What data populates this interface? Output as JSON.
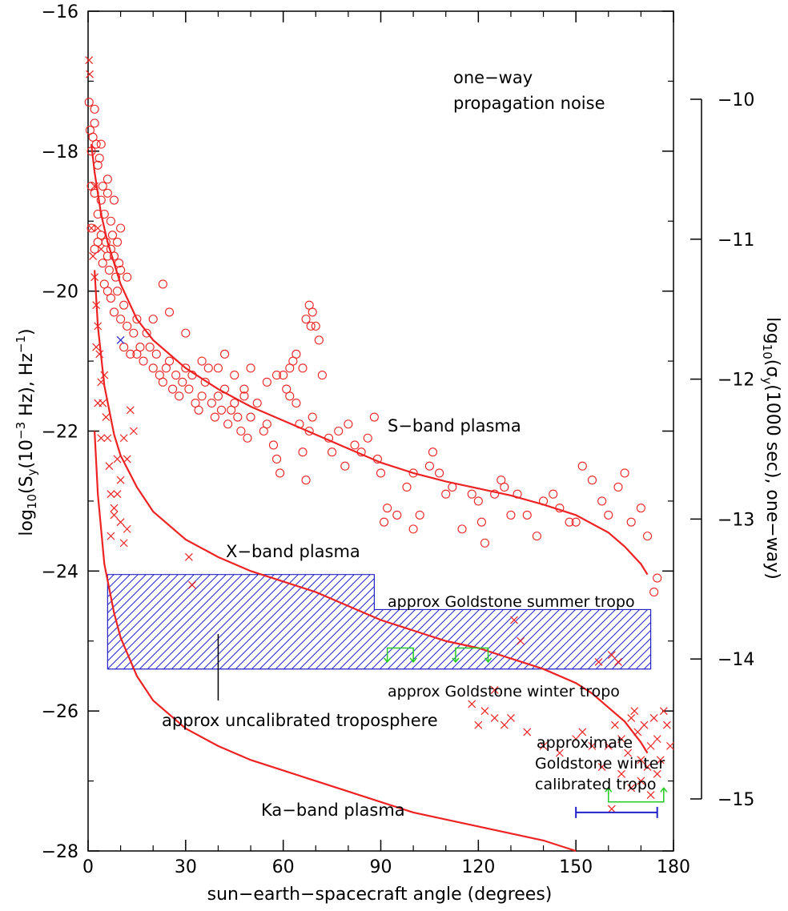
{
  "chart_data": {
    "type": "scatter",
    "title": "",
    "xlabel": "sun−earth−spacecraft angle (degrees)",
    "ylabel_parts": {
      "a": "log",
      "a_sub": "10",
      "b": "(S",
      "b_sub": "y",
      "c": "(10",
      "c_sup": "−3",
      "d": " Hz), Hz",
      "d_sup": "−1",
      "e": ")"
    },
    "y2label_parts": {
      "a": "log",
      "a_sub": "10",
      "b": "(σ",
      "b_sub": "y",
      "c": "(1000 sec), one−way)"
    },
    "xlim": [
      0,
      180
    ],
    "ylim": [
      -28,
      -16
    ],
    "y2lim": [
      -15,
      -10
    ],
    "x_ticks": [
      "0",
      "30",
      "60",
      "90",
      "120",
      "150",
      "180"
    ],
    "y_ticks": [
      "−16",
      "−18",
      "−20",
      "−22",
      "−24",
      "−26",
      "−28"
    ],
    "y2_ticks": [
      "−10",
      "−11",
      "−12",
      "−13",
      "−14",
      "−15"
    ],
    "annotations": {
      "title_line1": "one−way",
      "title_line2": "propagation noise",
      "s_band": "S−band plasma",
      "x_band": "X−band plasma",
      "ka_band": "Ka−band plasma",
      "summer": "approx Goldstone summer tropo",
      "winter": "approx Goldstone winter tropo",
      "uncal": "approx uncalibrated troposphere",
      "calib1": "approximate",
      "calib2": "Goldstone winter",
      "calib3": "calibrated tropo"
    },
    "curves": [
      {
        "label": "S−band plasma",
        "x": [
          1,
          2,
          4,
          6,
          8,
          10,
          15,
          20,
          30,
          40,
          50,
          60,
          70,
          80,
          90,
          100,
          110,
          120,
          130,
          140,
          150,
          160,
          165,
          170,
          172
        ],
        "y": [
          -17.9,
          -18.3,
          -18.9,
          -19.3,
          -19.6,
          -19.9,
          -20.4,
          -20.7,
          -21.1,
          -21.4,
          -21.65,
          -21.85,
          -22.05,
          -22.25,
          -22.45,
          -22.6,
          -22.72,
          -22.82,
          -22.92,
          -23.05,
          -23.2,
          -23.45,
          -23.65,
          -23.9,
          -24.05
        ]
      },
      {
        "label": "X−band plasma",
        "x": [
          2,
          3,
          5,
          8,
          10,
          15,
          20,
          30,
          40,
          50,
          60,
          70,
          80,
          90,
          100,
          110,
          120,
          130,
          140,
          150,
          155,
          160,
          165,
          170,
          172
        ],
        "y": [
          -19.7,
          -20.5,
          -21.35,
          -22.05,
          -22.35,
          -22.8,
          -23.15,
          -23.55,
          -23.8,
          -24.0,
          -24.15,
          -24.3,
          -24.5,
          -24.7,
          -24.85,
          -25.0,
          -25.1,
          -25.25,
          -25.4,
          -25.6,
          -25.75,
          -25.95,
          -26.15,
          -26.45,
          -26.6
        ]
      },
      {
        "label": "Ka−band plasma",
        "x": [
          2,
          3,
          5,
          8,
          10,
          15,
          20,
          30,
          40,
          50,
          60,
          70,
          80,
          90,
          100,
          110,
          120,
          130,
          140,
          150
        ],
        "y": [
          -22.0,
          -22.9,
          -23.9,
          -24.6,
          -24.95,
          -25.5,
          -25.85,
          -26.25,
          -26.5,
          -26.7,
          -26.85,
          -27.0,
          -27.15,
          -27.3,
          -27.45,
          -27.55,
          -27.65,
          -27.75,
          -27.85,
          -28.0
        ]
      }
    ],
    "tropo_region": {
      "x": [
        6,
        88,
        88,
        173,
        173,
        6
      ],
      "y": [
        -24.05,
        -24.05,
        -24.55,
        -24.55,
        -25.4,
        -25.4
      ]
    },
    "s_band_circles": [
      [
        0.3,
        -17.3
      ],
      [
        0.6,
        -17.7
      ],
      [
        1,
        -18
      ],
      [
        1.5,
        -17.8
      ],
      [
        2,
        -17.4
      ],
      [
        2.5,
        -17.9
      ],
      [
        1,
        -18.5
      ],
      [
        2,
        -18.6
      ],
      [
        3,
        -18.2
      ],
      [
        4,
        -18.7
      ],
      [
        4.5,
        -18.5
      ],
      [
        5,
        -18.9
      ],
      [
        6,
        -18.6
      ],
      [
        7,
        -19
      ],
      [
        1,
        -19.1
      ],
      [
        2,
        -19.4
      ],
      [
        3,
        -19.3
      ],
      [
        4,
        -19.2
      ],
      [
        4.5,
        -19.6
      ],
      [
        5.5,
        -19.3
      ],
      [
        6,
        -19.5
      ],
      [
        6.5,
        -19.7
      ],
      [
        7,
        -19.4
      ],
      [
        7.5,
        -19.2
      ],
      [
        8,
        -19.5
      ],
      [
        8.5,
        -19.8
      ],
      [
        9,
        -19.3
      ],
      [
        9.5,
        -19.6
      ],
      [
        10,
        -19.7
      ],
      [
        5,
        -19.9
      ],
      [
        6,
        -20
      ],
      [
        7,
        -20.1
      ],
      [
        8,
        -20.3
      ],
      [
        9,
        -20
      ],
      [
        10,
        -20.4
      ],
      [
        11,
        -20.2
      ],
      [
        12,
        -20.5
      ],
      [
        11,
        -20.8
      ],
      [
        13,
        -20.9
      ],
      [
        14,
        -20.6
      ],
      [
        15,
        -20.9
      ],
      [
        16,
        -20.8
      ],
      [
        17,
        -21
      ],
      [
        18,
        -20.6
      ],
      [
        19,
        -20.8
      ],
      [
        20,
        -21.1
      ],
      [
        21,
        -20.9
      ],
      [
        22,
        -21.2
      ],
      [
        23,
        -21.3
      ],
      [
        24,
        -21.1
      ],
      [
        25,
        -21
      ],
      [
        26,
        -21.4
      ],
      [
        27,
        -21.2
      ],
      [
        28,
        -21.5
      ],
      [
        29,
        -21.3
      ],
      [
        30,
        -21.1
      ],
      [
        31,
        -21.4
      ],
      [
        32,
        -21.2
      ],
      [
        33,
        -21.6
      ],
      [
        34,
        -21.7
      ],
      [
        35,
        -21.5
      ],
      [
        36,
        -21.3
      ],
      [
        37,
        -21.1
      ],
      [
        38,
        -21.6
      ],
      [
        39,
        -21.8
      ],
      [
        40,
        -21.5
      ],
      [
        41,
        -21.7
      ],
      [
        42,
        -21.4
      ],
      [
        43,
        -21.9
      ],
      [
        44,
        -21.7
      ],
      [
        45,
        -21.6
      ],
      [
        46,
        -21.8
      ],
      [
        47,
        -22
      ],
      [
        48,
        -21.5
      ],
      [
        49,
        -22.1
      ],
      [
        50,
        -21.8
      ],
      [
        52,
        -21.6
      ],
      [
        54,
        -22
      ],
      [
        55,
        -21.9
      ],
      [
        57,
        -22.2
      ],
      [
        58,
        -22.4
      ],
      [
        59,
        -22.6
      ],
      [
        60,
        -21.2
      ],
      [
        61,
        -21.4
      ],
      [
        62,
        -21.1
      ],
      [
        63,
        -21
      ],
      [
        64,
        -21.6
      ],
      [
        65,
        -21.9
      ],
      [
        66,
        -22.3
      ],
      [
        67,
        -22.7
      ],
      [
        68,
        -22
      ],
      [
        69,
        -21.8
      ],
      [
        70,
        -20.5
      ],
      [
        71,
        -20.7
      ],
      [
        72,
        -21.2
      ],
      [
        74,
        -22.1
      ],
      [
        75,
        -22.3
      ],
      [
        77,
        -22
      ],
      [
        79,
        -22.5
      ],
      [
        80,
        -21.9
      ],
      [
        82,
        -22.2
      ],
      [
        84,
        -22.3
      ],
      [
        86,
        -22.1
      ],
      [
        88,
        -21.8
      ],
      [
        89,
        -22.4
      ],
      [
        90,
        -22.6
      ],
      [
        91,
        -23.3
      ],
      [
        92,
        -23.1
      ],
      [
        95,
        -23.2
      ],
      [
        98,
        -22.8
      ],
      [
        100,
        -23.4
      ],
      [
        105,
        -22.5
      ],
      [
        106,
        -22.3
      ],
      [
        110,
        -22.9
      ],
      [
        115,
        -23.4
      ],
      [
        120,
        -23
      ],
      [
        121,
        -23.3
      ],
      [
        122,
        -23.6
      ],
      [
        125,
        -22.9
      ],
      [
        127,
        -22.7
      ],
      [
        130,
        -23.2
      ],
      [
        132,
        -22.9
      ],
      [
        135,
        -23.2
      ],
      [
        138,
        -23.5
      ],
      [
        140,
        -23
      ],
      [
        143,
        -22.9
      ],
      [
        148,
        -23.3
      ],
      [
        150,
        -23.3
      ],
      [
        152,
        -22.5
      ],
      [
        155,
        -22.7
      ],
      [
        158,
        -23
      ],
      [
        160,
        -23.2
      ],
      [
        163,
        -22.8
      ],
      [
        165,
        -22.6
      ],
      [
        167,
        -23.3
      ],
      [
        170,
        -23.1
      ],
      [
        172,
        -23.5
      ],
      [
        174,
        -24.3
      ],
      [
        175,
        -24.1
      ],
      [
        20,
        -20.4
      ],
      [
        23,
        -19.9
      ],
      [
        25,
        -20.3
      ],
      [
        30,
        -20.6
      ],
      [
        35,
        -21
      ],
      [
        40,
        -21.1
      ],
      [
        42,
        -20.9
      ],
      [
        45,
        -21.2
      ],
      [
        48,
        -21.4
      ],
      [
        50,
        -21.1
      ],
      [
        55,
        -21.3
      ],
      [
        58,
        -21.2
      ],
      [
        62,
        -21.5
      ],
      [
        64,
        -20.9
      ],
      [
        66,
        -21.1
      ],
      [
        67,
        -20.4
      ],
      [
        68,
        -20.2
      ],
      [
        68.5,
        -20.5
      ],
      [
        69,
        -20.3
      ],
      [
        15,
        -20.4
      ],
      [
        12,
        -19.8
      ],
      [
        10,
        -19.1
      ],
      [
        8,
        -18.7
      ],
      [
        6,
        -18.4
      ],
      [
        3,
        -18.9
      ],
      [
        2,
        -17.6
      ],
      [
        3.5,
        -18.1
      ],
      [
        4,
        -17.9
      ],
      [
        100,
        -22.6
      ],
      [
        102,
        -23.2
      ],
      [
        108,
        -22.6
      ],
      [
        112,
        -22.8
      ],
      [
        118,
        -22.9
      ],
      [
        128,
        -22.8
      ],
      [
        145,
        -23.1
      ]
    ],
    "s_band_blue_cross": [
      [
        10,
        -20.7
      ]
    ],
    "x_band_crosses": [
      [
        0.3,
        -16.7
      ],
      [
        0.5,
        -16.9
      ],
      [
        1,
        -19.1
      ],
      [
        1.5,
        -19.5
      ],
      [
        2,
        -19.8
      ],
      [
        2.5,
        -20.2
      ],
      [
        3,
        -20.5
      ],
      [
        3.5,
        -20.9
      ],
      [
        4,
        -21.3
      ],
      [
        4.5,
        -21.6
      ],
      [
        5,
        -21.2
      ],
      [
        5.5,
        -21.8
      ],
      [
        6,
        -22.1
      ],
      [
        6.5,
        -22.5
      ],
      [
        7,
        -22.9
      ],
      [
        8,
        -23.2
      ],
      [
        9,
        -22.4
      ],
      [
        10,
        -22.7
      ],
      [
        11,
        -22.1
      ],
      [
        12,
        -23.4
      ],
      [
        13,
        -21.7
      ],
      [
        14,
        -22
      ],
      [
        31,
        -23.8
      ],
      [
        32,
        -24.2
      ],
      [
        131,
        -24.7
      ],
      [
        133,
        -25
      ],
      [
        157,
        -25.3
      ],
      [
        161,
        -25.2
      ],
      [
        163,
        -25.3
      ],
      [
        118,
        -25.9
      ],
      [
        120,
        -26.2
      ],
      [
        122,
        -26
      ],
      [
        125,
        -26.1
      ],
      [
        128,
        -26.2
      ],
      [
        130,
        -26.1
      ],
      [
        135,
        -26.3
      ],
      [
        140,
        -26.5
      ],
      [
        145,
        -26.6
      ],
      [
        150,
        -26.4
      ],
      [
        152,
        -26.3
      ],
      [
        155,
        -26.5
      ],
      [
        158,
        -26.8
      ],
      [
        160,
        -26.5
      ],
      [
        162,
        -26.2
      ],
      [
        164,
        -26.4
      ],
      [
        166,
        -26.6
      ],
      [
        167,
        -26.1
      ],
      [
        168,
        -26
      ],
      [
        169,
        -26.3
      ],
      [
        170,
        -26.7
      ],
      [
        171,
        -26.2
      ],
      [
        172,
        -26.8
      ],
      [
        173,
        -26.5
      ],
      [
        174,
        -26.1
      ],
      [
        175,
        -26.4
      ],
      [
        176,
        -26.7
      ],
      [
        177,
        -26
      ],
      [
        178,
        -26.2
      ],
      [
        179,
        -26.5
      ],
      [
        175,
        -26.9
      ],
      [
        173,
        -27.2
      ],
      [
        170,
        -27
      ],
      [
        167,
        -27.1
      ],
      [
        164,
        -26.9
      ],
      [
        161,
        -27.4
      ],
      [
        2,
        -18.5
      ],
      [
        3,
        -19.1
      ],
      [
        4,
        -19.4
      ],
      [
        2.5,
        -20.8
      ],
      [
        3,
        -21.6
      ],
      [
        4,
        -22.1
      ],
      [
        7,
        -23.5
      ],
      [
        8,
        -23.1
      ],
      [
        9,
        -22.9
      ],
      [
        10,
        -23.3
      ],
      [
        11,
        -23.6
      ],
      [
        12,
        -22.4
      ],
      [
        125,
        -25.7
      ]
    ],
    "summer_markers": [
      [
        92,
        100
      ],
      [
        113,
        123
      ]
    ],
    "calibrated_marker": {
      "x": [
        160,
        177
      ]
    },
    "blue_bar": {
      "x": [
        150,
        175
      ]
    }
  }
}
